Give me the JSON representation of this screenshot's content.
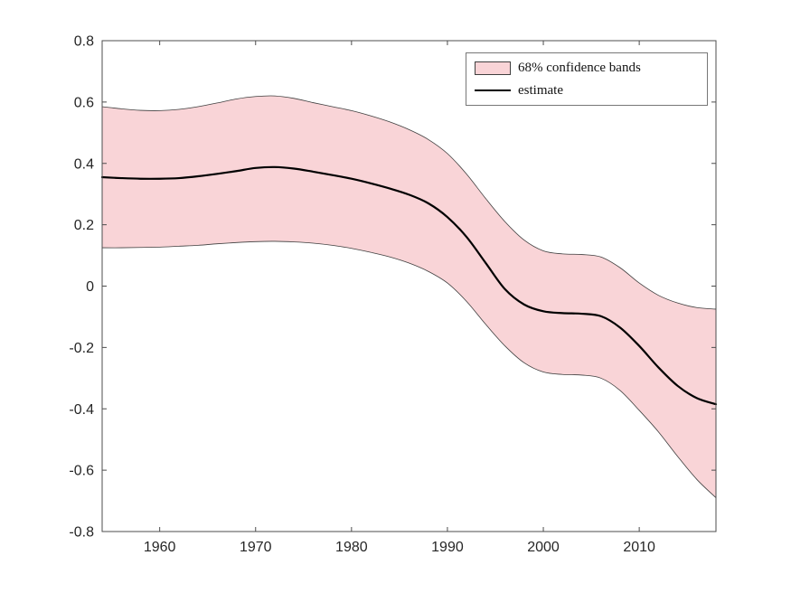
{
  "figure": {
    "background": "#ffffff"
  },
  "chart_data": {
    "type": "line",
    "title": "",
    "xlabel": "",
    "ylabel": "",
    "x": [
      1954,
      1956,
      1958,
      1960,
      1962,
      1964,
      1966,
      1968,
      1970,
      1972,
      1974,
      1976,
      1978,
      1980,
      1982,
      1984,
      1986,
      1988,
      1990,
      1992,
      1994,
      1996,
      1998,
      2000,
      2002,
      2004,
      2006,
      2008,
      2010,
      2012,
      2014,
      2016,
      2018
    ],
    "series": [
      {
        "name": "estimate",
        "values": [
          0.355,
          0.352,
          0.35,
          0.35,
          0.352,
          0.358,
          0.366,
          0.375,
          0.385,
          0.388,
          0.383,
          0.373,
          0.362,
          0.35,
          0.335,
          0.318,
          0.298,
          0.27,
          0.225,
          0.16,
          0.075,
          -0.01,
          -0.06,
          -0.082,
          -0.088,
          -0.09,
          -0.098,
          -0.135,
          -0.195,
          -0.265,
          -0.325,
          -0.365,
          -0.385
        ]
      },
      {
        "name": "upper_68_band",
        "values": [
          0.585,
          0.578,
          0.573,
          0.572,
          0.576,
          0.585,
          0.597,
          0.61,
          0.618,
          0.62,
          0.612,
          0.598,
          0.585,
          0.572,
          0.555,
          0.535,
          0.51,
          0.478,
          0.432,
          0.365,
          0.285,
          0.21,
          0.15,
          0.115,
          0.105,
          0.103,
          0.095,
          0.06,
          0.01,
          -0.03,
          -0.055,
          -0.07,
          -0.075
        ]
      },
      {
        "name": "lower_68_band",
        "values": [
          0.125,
          0.125,
          0.126,
          0.127,
          0.13,
          0.133,
          0.138,
          0.142,
          0.145,
          0.146,
          0.144,
          0.14,
          0.133,
          0.123,
          0.11,
          0.095,
          0.075,
          0.048,
          0.01,
          -0.05,
          -0.125,
          -0.195,
          -0.25,
          -0.28,
          -0.288,
          -0.29,
          -0.3,
          -0.34,
          -0.405,
          -0.475,
          -0.555,
          -0.63,
          -0.69
        ]
      }
    ],
    "axes": {
      "xlim": [
        1954,
        2018
      ],
      "ylim": [
        -0.8,
        0.8
      ],
      "xticks": [
        1960,
        1970,
        1980,
        1990,
        2000,
        2010
      ],
      "xticklabels": [
        "1960",
        "1970",
        "1980",
        "1990",
        "2000",
        "2010"
      ],
      "yticks": [
        0.8,
        0.6,
        0.4,
        0.2,
        0,
        -0.2,
        -0.4,
        -0.6,
        -0.8
      ],
      "yticklabels": [
        "0.8",
        "0.6",
        "0.4",
        "0.2",
        "0",
        "-0.2",
        "-0.4",
        "-0.6",
        "-0.8"
      ],
      "grid": false,
      "box": true
    },
    "legend": {
      "position": "top-right",
      "items": [
        {
          "label": "68% confidence bands",
          "swatch": "band"
        },
        {
          "label": "estimate",
          "swatch": "line"
        }
      ]
    },
    "colors": {
      "band_fill": "#f9d4d7",
      "band_edge": "#3f3f3f",
      "estimate_line": "#000000",
      "axis": "#4d4d4d",
      "tick_label": "#262626"
    }
  }
}
